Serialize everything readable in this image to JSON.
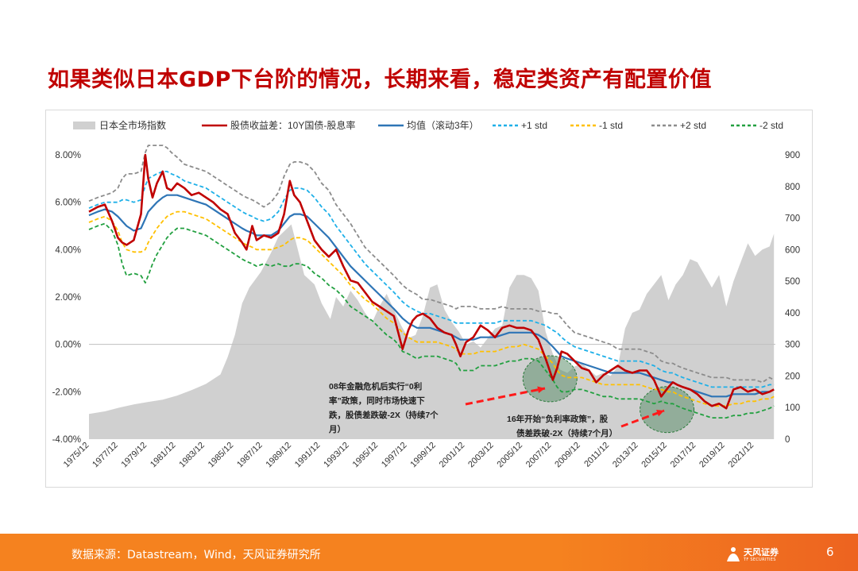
{
  "slide": {
    "title": "如果类似日本GDP下台阶的情况，长期来看，稳定类资产有配置价值",
    "source": "数据来源：Datastream，Wind，天风证券研究所",
    "page_number": "6",
    "logo_text": "天风证券",
    "logo_sub": "TF SECURITIES"
  },
  "chart_data": {
    "type": "line",
    "legend_position": "top",
    "legend": [
      {
        "name": "日本全市场指数",
        "style": "area",
        "color": "#d0d0d0"
      },
      {
        "name": "股债收益差：10Y国债-股息率",
        "style": "solid",
        "color": "#c00000"
      },
      {
        "name": "均值（滚动3年）",
        "style": "solid",
        "color": "#2e75b6"
      },
      {
        "name": "+1 std",
        "style": "dashed",
        "color": "#1fb0e8"
      },
      {
        "name": "-1 std",
        "style": "dashed",
        "color": "#ffc000"
      },
      {
        "name": "+2 std",
        "style": "dashed",
        "color": "#8c8c8c"
      },
      {
        "name": "-2 std",
        "style": "dashed",
        "color": "#22a040"
      }
    ],
    "left_axis": {
      "min": -0.04,
      "max": 0.08,
      "ticks": [
        "8.00%",
        "6.00%",
        "4.00%",
        "2.00%",
        "0.00%",
        "-2.00%",
        "-4.00%"
      ]
    },
    "right_axis": {
      "min": 0,
      "max": 900,
      "ticks": [
        "900",
        "800",
        "700",
        "600",
        "500",
        "400",
        "300",
        "200",
        "100",
        "0"
      ]
    },
    "x_range": [
      1975.9,
      2023.4
    ],
    "x_ticks": [
      "1975/12",
      "1977/12",
      "1979/12",
      "1981/12",
      "1983/12",
      "1985/12",
      "1987/12",
      "1989/12",
      "1991/12",
      "1993/12",
      "1995/12",
      "1997/12",
      "1999/12",
      "2001/12",
      "2003/12",
      "2005/12",
      "2007/12",
      "2009/12",
      "2011/12",
      "2013/12",
      "2015/12",
      "2017/12",
      "2019/12",
      "2021/12"
    ],
    "index_series": {
      "x": [
        1975.9,
        1977,
        1978,
        1979,
        1980,
        1981,
        1982,
        1983,
        1984,
        1985,
        1985.5,
        1986,
        1986.5,
        1987,
        1987.8,
        1988.5,
        1989,
        1989.9,
        1990.3,
        1990.8,
        1991.5,
        1992,
        1992.6,
        1993,
        1993.5,
        1994,
        1994.5,
        1995,
        1995.5,
        1996,
        1996.5,
        1997,
        1997.5,
        1998,
        1998.5,
        1999,
        1999.5,
        2000,
        2000.5,
        2001,
        2001.5,
        2002,
        2002.5,
        2003,
        2003.5,
        2004,
        2004.5,
        2005,
        2005.5,
        2006,
        2006.5,
        2007,
        2007.5,
        2008,
        2008.5,
        2009,
        2009.5,
        2010,
        2010.5,
        2011,
        2011.5,
        2012,
        2012.5,
        2013,
        2013.5,
        2014,
        2014.5,
        2015,
        2015.5,
        2016,
        2016.5,
        2017,
        2017.5,
        2018,
        2018.5,
        2019,
        2019.5,
        2020,
        2020.5,
        2021,
        2021.5,
        2022,
        2022.5,
        2023,
        2023.3
      ],
      "y": [
        80,
        88,
        100,
        110,
        118,
        125,
        138,
        155,
        175,
        205,
        260,
        330,
        430,
        480,
        530,
        590,
        640,
        680,
        610,
        520,
        490,
        430,
        380,
        450,
        420,
        470,
        440,
        400,
        370,
        420,
        460,
        410,
        360,
        320,
        330,
        390,
        480,
        490,
        410,
        370,
        340,
        300,
        310,
        290,
        320,
        350,
        360,
        480,
        520,
        520,
        510,
        470,
        340,
        270,
        220,
        210,
        230,
        240,
        220,
        200,
        210,
        200,
        230,
        350,
        400,
        410,
        460,
        490,
        520,
        440,
        490,
        520,
        570,
        560,
        520,
        480,
        520,
        420,
        500,
        560,
        620,
        580,
        600,
        610,
        650
      ]
    },
    "x": [
      1975.9,
      1976.5,
      1977,
      1977.5,
      1977.9,
      1978.2,
      1978.5,
      1979,
      1979.5,
      1979.8,
      1980,
      1980.3,
      1980.6,
      1981,
      1981.3,
      1981.6,
      1982,
      1982.5,
      1983,
      1983.5,
      1984,
      1984.5,
      1985,
      1985.5,
      1986,
      1986.5,
      1986.8,
      1987.2,
      1987.5,
      1988,
      1988.5,
      1989,
      1989.4,
      1989.8,
      1990.1,
      1990.5,
      1991,
      1991.5,
      1992,
      1992.5,
      1993,
      1993.5,
      1994,
      1994.5,
      1995,
      1995.5,
      1996,
      1996.5,
      1997,
      1997.3,
      1997.6,
      1998,
      1998.3,
      1998.6,
      1999,
      1999.5,
      2000,
      2000.5,
      2001,
      2001.3,
      2001.6,
      2002,
      2002.5,
      2003,
      2003.5,
      2004,
      2004.5,
      2005,
      2005.5,
      2006,
      2006.5,
      2007,
      2007.5,
      2008,
      2008.3,
      2008.6,
      2009,
      2009.5,
      2010,
      2010.5,
      2011,
      2011.5,
      2012,
      2012.5,
      2013,
      2013.5,
      2014,
      2014.5,
      2015,
      2015.5,
      2016,
      2016.3,
      2016.6,
      2017,
      2017.5,
      2018,
      2018.5,
      2019,
      2019.5,
      2020,
      2020.5,
      2021,
      2021.5,
      2022,
      2022.5,
      2023,
      2023.3
    ],
    "series": [
      {
        "name": "股债收益差：10Y国债-股息率",
        "values": [
          0.056,
          0.058,
          0.059,
          0.052,
          0.045,
          0.043,
          0.042,
          0.044,
          0.055,
          0.08,
          0.07,
          0.062,
          0.068,
          0.073,
          0.066,
          0.065,
          0.068,
          0.066,
          0.063,
          0.064,
          0.062,
          0.06,
          0.057,
          0.055,
          0.047,
          0.043,
          0.04,
          0.05,
          0.044,
          0.046,
          0.045,
          0.047,
          0.055,
          0.069,
          0.063,
          0.06,
          0.052,
          0.044,
          0.04,
          0.037,
          0.04,
          0.033,
          0.027,
          0.026,
          0.022,
          0.018,
          0.016,
          0.014,
          0.012,
          0.005,
          -0.002,
          0.006,
          0.01,
          0.012,
          0.013,
          0.011,
          0.007,
          0.005,
          0.004,
          0.0,
          -0.005,
          0.001,
          0.003,
          0.008,
          0.006,
          0.003,
          0.007,
          0.008,
          0.007,
          0.007,
          0.006,
          0.002,
          -0.006,
          -0.015,
          -0.01,
          -0.003,
          -0.004,
          -0.007,
          -0.01,
          -0.011,
          -0.016,
          -0.013,
          -0.011,
          -0.009,
          -0.011,
          -0.012,
          -0.011,
          -0.011,
          -0.015,
          -0.022,
          -0.018,
          -0.016,
          -0.017,
          -0.018,
          -0.019,
          -0.021,
          -0.024,
          -0.026,
          -0.025,
          -0.027,
          -0.019,
          -0.018,
          -0.02,
          -0.019,
          -0.021,
          -0.02,
          -0.019
        ]
      },
      {
        "name": "均值（滚动3年）",
        "values": [
          0.0545,
          0.056,
          0.057,
          0.056,
          0.054,
          0.052,
          0.05,
          0.048,
          0.049,
          0.053,
          0.056,
          0.058,
          0.06,
          0.062,
          0.063,
          0.063,
          0.063,
          0.062,
          0.061,
          0.06,
          0.059,
          0.057,
          0.055,
          0.053,
          0.051,
          0.049,
          0.048,
          0.047,
          0.046,
          0.046,
          0.046,
          0.048,
          0.051,
          0.054,
          0.055,
          0.055,
          0.054,
          0.051,
          0.048,
          0.045,
          0.041,
          0.037,
          0.033,
          0.03,
          0.027,
          0.024,
          0.021,
          0.018,
          0.015,
          0.013,
          0.011,
          0.009,
          0.008,
          0.007,
          0.007,
          0.007,
          0.006,
          0.005,
          0.004,
          0.003,
          0.002,
          0.002,
          0.002,
          0.003,
          0.003,
          0.003,
          0.004,
          0.005,
          0.005,
          0.005,
          0.005,
          0.004,
          0.002,
          -0.001,
          -0.003,
          -0.005,
          -0.006,
          -0.007,
          -0.008,
          -0.009,
          -0.01,
          -0.011,
          -0.012,
          -0.012,
          -0.012,
          -0.012,
          -0.012,
          -0.013,
          -0.014,
          -0.015,
          -0.016,
          -0.016,
          -0.017,
          -0.018,
          -0.019,
          -0.02,
          -0.021,
          -0.022,
          -0.022,
          -0.022,
          -0.021,
          -0.021,
          -0.021,
          -0.021,
          -0.02,
          -0.02,
          -0.019
        ]
      },
      {
        "name": "+1 std",
        "values": [
          0.0575,
          0.059,
          0.06,
          0.06,
          0.06,
          0.061,
          0.061,
          0.06,
          0.061,
          0.067,
          0.07,
          0.071,
          0.072,
          0.073,
          0.073,
          0.072,
          0.071,
          0.069,
          0.068,
          0.067,
          0.066,
          0.064,
          0.062,
          0.06,
          0.058,
          0.056,
          0.055,
          0.054,
          0.053,
          0.052,
          0.053,
          0.056,
          0.061,
          0.065,
          0.066,
          0.066,
          0.065,
          0.062,
          0.058,
          0.055,
          0.05,
          0.046,
          0.042,
          0.038,
          0.034,
          0.031,
          0.028,
          0.025,
          0.022,
          0.02,
          0.018,
          0.016,
          0.015,
          0.014,
          0.013,
          0.013,
          0.012,
          0.011,
          0.01,
          0.009,
          0.009,
          0.009,
          0.009,
          0.009,
          0.009,
          0.009,
          0.01,
          0.01,
          0.01,
          0.01,
          0.01,
          0.009,
          0.008,
          0.006,
          0.005,
          0.003,
          0.001,
          -0.001,
          -0.002,
          -0.003,
          -0.004,
          -0.005,
          -0.006,
          -0.007,
          -0.007,
          -0.007,
          -0.007,
          -0.008,
          -0.009,
          -0.011,
          -0.012,
          -0.012,
          -0.013,
          -0.014,
          -0.015,
          -0.016,
          -0.017,
          -0.018,
          -0.018,
          -0.018,
          -0.018,
          -0.018,
          -0.018,
          -0.018,
          -0.018,
          -0.017,
          -0.017
        ]
      },
      {
        "name": "-1 std",
        "values": [
          0.0515,
          0.053,
          0.054,
          0.052,
          0.048,
          0.043,
          0.04,
          0.039,
          0.039,
          0.04,
          0.043,
          0.046,
          0.049,
          0.052,
          0.054,
          0.055,
          0.056,
          0.056,
          0.055,
          0.054,
          0.053,
          0.051,
          0.049,
          0.047,
          0.045,
          0.043,
          0.042,
          0.041,
          0.04,
          0.04,
          0.04,
          0.041,
          0.042,
          0.044,
          0.045,
          0.045,
          0.044,
          0.041,
          0.038,
          0.035,
          0.032,
          0.029,
          0.025,
          0.022,
          0.019,
          0.017,
          0.014,
          0.011,
          0.009,
          0.007,
          0.005,
          0.003,
          0.002,
          0.001,
          0.001,
          0.001,
          0.001,
          0.0,
          -0.001,
          -0.002,
          -0.004,
          -0.004,
          -0.004,
          -0.003,
          -0.003,
          -0.003,
          -0.002,
          -0.001,
          -0.001,
          0.0,
          -0.001,
          -0.002,
          -0.005,
          -0.008,
          -0.011,
          -0.013,
          -0.014,
          -0.014,
          -0.014,
          -0.015,
          -0.016,
          -0.017,
          -0.017,
          -0.017,
          -0.017,
          -0.017,
          -0.017,
          -0.018,
          -0.019,
          -0.019,
          -0.02,
          -0.02,
          -0.021,
          -0.022,
          -0.023,
          -0.024,
          -0.025,
          -0.026,
          -0.026,
          -0.026,
          -0.025,
          -0.025,
          -0.024,
          -0.024,
          -0.023,
          -0.023,
          -0.022
        ]
      },
      {
        "name": "+2 std",
        "values": [
          0.0605,
          0.062,
          0.063,
          0.064,
          0.066,
          0.07,
          0.072,
          0.072,
          0.073,
          0.081,
          0.084,
          0.084,
          0.084,
          0.084,
          0.083,
          0.081,
          0.079,
          0.076,
          0.075,
          0.074,
          0.073,
          0.071,
          0.069,
          0.067,
          0.065,
          0.063,
          0.062,
          0.061,
          0.06,
          0.058,
          0.06,
          0.064,
          0.071,
          0.076,
          0.077,
          0.077,
          0.076,
          0.073,
          0.068,
          0.065,
          0.059,
          0.055,
          0.051,
          0.046,
          0.041,
          0.038,
          0.035,
          0.032,
          0.029,
          0.027,
          0.025,
          0.023,
          0.022,
          0.021,
          0.019,
          0.019,
          0.018,
          0.017,
          0.016,
          0.015,
          0.016,
          0.016,
          0.016,
          0.015,
          0.015,
          0.015,
          0.016,
          0.015,
          0.015,
          0.015,
          0.015,
          0.014,
          0.014,
          0.013,
          0.013,
          0.011,
          0.008,
          0.005,
          0.004,
          0.003,
          0.002,
          0.001,
          0.0,
          -0.002,
          -0.002,
          -0.002,
          -0.002,
          -0.003,
          -0.004,
          -0.007,
          -0.008,
          -0.008,
          -0.009,
          -0.01,
          -0.011,
          -0.012,
          -0.013,
          -0.014,
          -0.014,
          -0.014,
          -0.015,
          -0.015,
          -0.015,
          -0.015,
          -0.016,
          -0.014,
          -0.015
        ]
      },
      {
        "name": "-2 std",
        "values": [
          0.0485,
          0.05,
          0.051,
          0.048,
          0.042,
          0.034,
          0.029,
          0.03,
          0.029,
          0.026,
          0.029,
          0.034,
          0.038,
          0.042,
          0.045,
          0.047,
          0.049,
          0.049,
          0.048,
          0.047,
          0.046,
          0.044,
          0.042,
          0.04,
          0.038,
          0.036,
          0.035,
          0.034,
          0.033,
          0.034,
          0.033,
          0.034,
          0.033,
          0.033,
          0.034,
          0.034,
          0.033,
          0.03,
          0.028,
          0.025,
          0.023,
          0.02,
          0.016,
          0.014,
          0.012,
          0.01,
          0.007,
          0.004,
          0.002,
          0.0,
          -0.003,
          -0.004,
          -0.005,
          -0.006,
          -0.005,
          -0.005,
          -0.005,
          -0.006,
          -0.007,
          -0.008,
          -0.011,
          -0.011,
          -0.011,
          -0.009,
          -0.009,
          -0.009,
          -0.008,
          -0.007,
          -0.007,
          -0.006,
          -0.006,
          -0.007,
          -0.011,
          -0.015,
          -0.018,
          -0.02,
          -0.02,
          -0.019,
          -0.019,
          -0.02,
          -0.021,
          -0.022,
          -0.022,
          -0.023,
          -0.023,
          -0.023,
          -0.023,
          -0.024,
          -0.025,
          -0.024,
          -0.025,
          -0.025,
          -0.026,
          -0.027,
          -0.028,
          -0.029,
          -0.03,
          -0.031,
          -0.031,
          -0.031,
          -0.03,
          -0.03,
          -0.029,
          -0.029,
          -0.028,
          -0.027,
          -0.026
        ]
      }
    ],
    "annotations": [
      {
        "lines": [
          "08年金融危机后实行“0利",
          "率”政策，同时市场快速下",
          "跌，股债差跌破-2X（持续7个",
          "月）"
        ],
        "x": 2007.8,
        "y": -0.0145
      },
      {
        "lines": [
          "16年开始“负利率政策”，股",
          "债差跌破-2X（持续7个月）"
        ],
        "x": 2015.9,
        "y": -0.0275
      }
    ]
  }
}
